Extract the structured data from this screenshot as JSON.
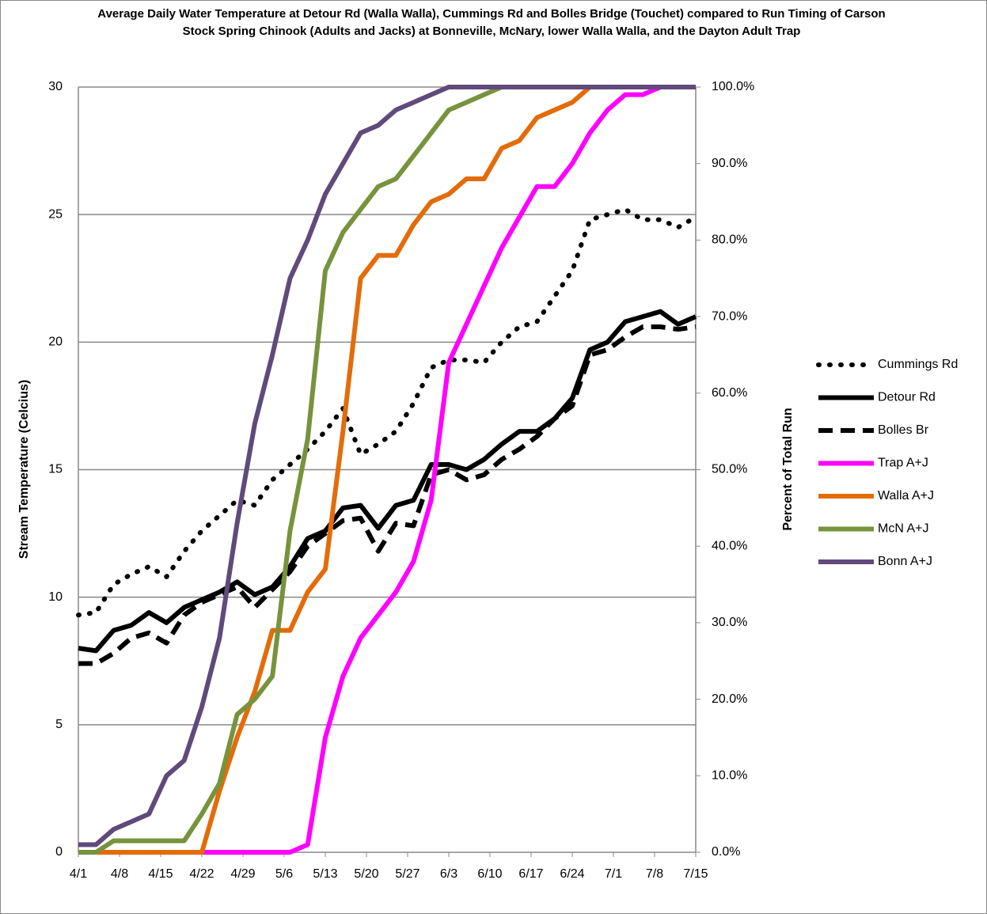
{
  "chart_data": {
    "type": "line",
    "title": "Average Daily Water Temperature at Detour Rd (Walla Walla), Cummings Rd and Bolles Bridge (Touchet) compared to Run Timing of Carson Stock Spring Chinook (Adults and Jacks) at Bonneville, McNary, lower Walla Walla, and the Dayton Adult Trap",
    "y_label": "Stream Temperature (Celcius)",
    "y2_label": "Percent of Total Run",
    "x": [
      0,
      3,
      6,
      9,
      12,
      15,
      18,
      21,
      24,
      27,
      30,
      33,
      36,
      39,
      42,
      45,
      48,
      51,
      54,
      57,
      60,
      63,
      66,
      69,
      72,
      75,
      78,
      81,
      84,
      87,
      90,
      93,
      96,
      99,
      102,
      105
    ],
    "xlim": [
      0,
      105
    ],
    "xticks": [
      {
        "value": 0,
        "label": "4/1"
      },
      {
        "value": 7,
        "label": "4/8"
      },
      {
        "value": 14,
        "label": "4/15"
      },
      {
        "value": 21,
        "label": "4/22"
      },
      {
        "value": 28,
        "label": "4/29"
      },
      {
        "value": 35,
        "label": "5/6"
      },
      {
        "value": 42,
        "label": "5/13"
      },
      {
        "value": 49,
        "label": "5/20"
      },
      {
        "value": 56,
        "label": "5/27"
      },
      {
        "value": 63,
        "label": "6/3"
      },
      {
        "value": 70,
        "label": "6/10"
      },
      {
        "value": 77,
        "label": "6/17"
      },
      {
        "value": 84,
        "label": "6/24"
      },
      {
        "value": 91,
        "label": "7/1"
      },
      {
        "value": 98,
        "label": "7/8"
      },
      {
        "value": 105,
        "label": "7/15"
      }
    ],
    "ylim": [
      0,
      30
    ],
    "yticks": [
      0,
      5,
      10,
      15,
      20,
      25,
      30
    ],
    "y2lim": [
      0,
      100
    ],
    "y2ticks": [
      {
        "value": 0,
        "label": "0.0%"
      },
      {
        "value": 10,
        "label": "10.0%"
      },
      {
        "value": 20,
        "label": "20.0%"
      },
      {
        "value": 30,
        "label": "30.0%"
      },
      {
        "value": 40,
        "label": "40.0%"
      },
      {
        "value": 50,
        "label": "50.0%"
      },
      {
        "value": 60,
        "label": "60.0%"
      },
      {
        "value": 70,
        "label": "70.0%"
      },
      {
        "value": 80,
        "label": "80.0%"
      },
      {
        "value": 90,
        "label": "90.0%"
      },
      {
        "value": 100,
        "label": "100.0%"
      }
    ],
    "grid": true,
    "legend": "right",
    "series": [
      {
        "name": "Cummings Rd",
        "color": "#000000",
        "line_style": "dotted",
        "values": [
          9.3,
          9.4,
          10.5,
          10.9,
          11.2,
          10.8,
          11.8,
          12.6,
          13.2,
          13.8,
          13.6,
          14.6,
          15.2,
          15.8,
          16.5,
          17.4,
          15.6,
          16.0,
          16.5,
          17.6,
          19.0,
          19.3,
          19.3,
          19.2,
          20.0,
          20.6,
          20.8,
          21.8,
          22.8,
          24.8,
          25.0,
          25.2,
          24.8,
          24.8,
          24.5,
          24.9
        ]
      },
      {
        "name": "Detour Rd",
        "color": "#000000",
        "line_style": "solid",
        "values": [
          8.0,
          7.9,
          8.7,
          8.9,
          9.4,
          9.0,
          9.6,
          9.9,
          10.2,
          10.6,
          10.1,
          10.4,
          11.2,
          12.3,
          12.6,
          13.5,
          13.6,
          12.7,
          13.6,
          13.8,
          15.2,
          15.2,
          15.0,
          15.4,
          16.0,
          16.5,
          16.5,
          17.0,
          17.8,
          19.7,
          20.0,
          20.8,
          21.0,
          21.2,
          20.7,
          21.0
        ]
      },
      {
        "name": "Bolles Br",
        "color": "#000000",
        "line_style": "dashed",
        "values": [
          7.4,
          7.4,
          7.8,
          8.4,
          8.6,
          8.2,
          9.3,
          9.8,
          10.1,
          10.4,
          9.6,
          10.3,
          11.0,
          12.0,
          12.5,
          13.0,
          13.1,
          11.8,
          12.9,
          12.8,
          14.8,
          15.0,
          14.6,
          14.8,
          15.4,
          15.8,
          16.3,
          17.0,
          17.5,
          19.5,
          19.7,
          20.2,
          20.6,
          20.6,
          20.5,
          20.6
        ]
      },
      {
        "name": "Trap A+J",
        "color": "#ff00ff",
        "line_style": "solid",
        "axis": "y2",
        "values": [
          0,
          0,
          0,
          0,
          0,
          0,
          0,
          0,
          0,
          0,
          0,
          0,
          0,
          1,
          15,
          23,
          28,
          31,
          34,
          38,
          46,
          64,
          69,
          74,
          79,
          83,
          87,
          87,
          90,
          94,
          97,
          99,
          99,
          100,
          100,
          100
        ]
      },
      {
        "name": "Walla A+J",
        "color": "#e36c0a",
        "line_style": "solid",
        "axis": "y2",
        "values": [
          0,
          0,
          0,
          0,
          0,
          0,
          0,
          0,
          8,
          15,
          21,
          29,
          29,
          34,
          37,
          55,
          75,
          78,
          78,
          82,
          85,
          86,
          88,
          88,
          92,
          93,
          96,
          97,
          98,
          100,
          100,
          100,
          100,
          100,
          100,
          100
        ]
      },
      {
        "name": "McN A+J",
        "color": "#77933c",
        "line_style": "solid",
        "axis": "y2",
        "values": [
          0,
          0,
          1.5,
          1.5,
          1.5,
          1.5,
          1.5,
          5,
          9,
          18,
          20,
          23,
          42,
          54,
          76,
          81,
          84,
          87,
          88,
          91,
          94,
          97,
          98,
          99,
          100,
          100,
          100,
          100,
          100,
          100,
          100,
          100,
          100,
          100,
          100,
          100
        ]
      },
      {
        "name": "Bonn A+J",
        "color": "#604a7b",
        "line_style": "solid",
        "axis": "y2",
        "values": [
          1,
          1,
          3,
          4,
          5,
          10,
          12,
          19,
          28,
          43,
          56,
          65,
          75,
          80,
          86,
          90,
          94,
          95,
          97,
          98,
          99,
          100,
          100,
          100,
          100,
          100,
          100,
          100,
          100,
          100,
          100,
          100,
          100,
          100,
          100,
          100
        ]
      }
    ]
  }
}
